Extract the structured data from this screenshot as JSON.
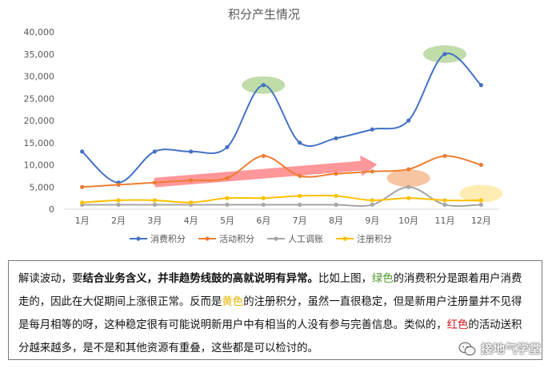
{
  "chart_data": {
    "type": "line",
    "title": "积分产生情况",
    "categories": [
      "1月",
      "2月",
      "3月",
      "4月",
      "5月",
      "6月",
      "7月",
      "8月",
      "9月",
      "10月",
      "11月",
      "12月"
    ],
    "y_ticks": [
      "0",
      "5,000",
      "10,000",
      "15,000",
      "20,000",
      "25,000",
      "30,000",
      "35,000",
      "40,000"
    ],
    "ylim": [
      0,
      40000
    ],
    "grid": false,
    "legend_position": "bottom",
    "series": [
      {
        "name": "消费积分",
        "color": "#4472c4",
        "values": [
          13000,
          6000,
          13000,
          13000,
          14000,
          28000,
          15000,
          16000,
          18000,
          20000,
          35000,
          28000
        ]
      },
      {
        "name": "活动积分",
        "color": "#ed7d31",
        "values": [
          5000,
          5500,
          6000,
          6500,
          7000,
          12000,
          7500,
          8000,
          8500,
          9000,
          12000,
          10000
        ]
      },
      {
        "name": "人工调账",
        "color": "#a5a5a5",
        "values": [
          1000,
          1000,
          1000,
          1000,
          1000,
          1000,
          1000,
          1000,
          1000,
          5000,
          1000,
          1000
        ]
      },
      {
        "name": "注册积分",
        "color": "#ffc000",
        "values": [
          1500,
          2000,
          2000,
          1500,
          2500,
          2500,
          3000,
          3000,
          2000,
          2500,
          2000,
          2000
        ]
      }
    ],
    "highlights": [
      {
        "x": "6月",
        "y": 28000,
        "color": "#a9d08e"
      },
      {
        "x": "11月",
        "y": 35000,
        "color": "#a9d08e"
      },
      {
        "x": "10月",
        "y": 7000,
        "color": "#f4b183"
      },
      {
        "x": "12月",
        "y": 3500,
        "color": "#ffe699"
      }
    ],
    "trend_arrow": {
      "from_x": "3月",
      "from_y": 6000,
      "to_x": "9月",
      "to_y": 10000,
      "color": "#ff7c80"
    }
  },
  "note": {
    "p1": "解读波动，要",
    "p1b": "结合业务含义，并非趋势线鼓的高就说明有异常。",
    "p2": "比如上图，",
    "green": "绿色",
    "p3": "的消费积分是跟着用户消费走的，因此在大促期间上涨很正常。反而是",
    "yellow": "黄色",
    "p4": "的注册积分，虽然一直很稳定，但是新用户注册量并不见得是每月相等的呀，这种稳定很有可能说明新用户中有相当的人没有参与完善信息。类似的，",
    "red": "红色",
    "p5": "的活动送积分越来越多，是不是和其他资源有重叠，这些都是可以检讨的。"
  },
  "watermark": "接地气学堂"
}
